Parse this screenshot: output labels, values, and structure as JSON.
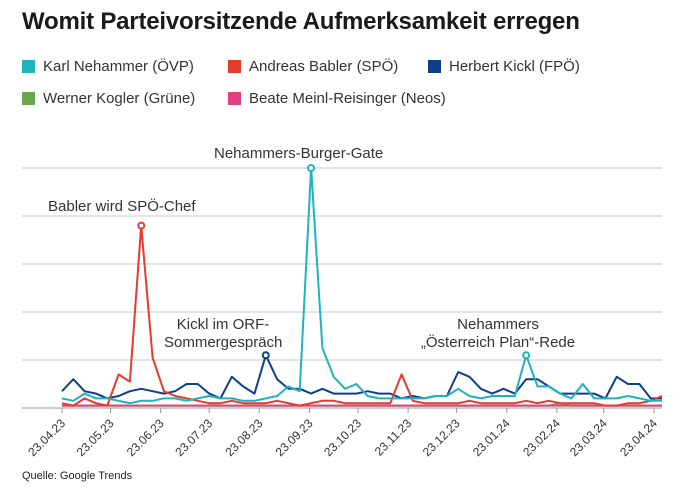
{
  "title": "Womit Parteivorsitzende Aufmerksamkeit erregen",
  "source": "Quelle: Google Trends",
  "chart_data": {
    "type": "line",
    "x": [
      "23.04.23",
      "30.04.23",
      "07.05.23",
      "14.05.23",
      "21.05.23",
      "28.05.23",
      "04.06.23",
      "11.06.23",
      "18.06.23",
      "25.06.23",
      "02.07.23",
      "09.07.23",
      "16.07.23",
      "23.07.23",
      "30.07.23",
      "06.08.23",
      "13.08.23",
      "20.08.23",
      "27.08.23",
      "03.09.23",
      "10.09.23",
      "17.09.23",
      "24.09.23",
      "01.10.23",
      "08.10.23",
      "15.10.23",
      "22.10.23",
      "29.10.23",
      "05.11.23",
      "12.11.23",
      "19.11.23",
      "26.11.23",
      "03.12.23",
      "10.12.23",
      "17.12.23",
      "24.12.23",
      "31.12.23",
      "07.01.24",
      "14.01.24",
      "21.01.24",
      "28.01.24",
      "04.02.24",
      "11.02.24",
      "18.02.24",
      "25.02.24",
      "03.03.24",
      "10.03.24",
      "17.03.24",
      "24.03.24",
      "31.03.24",
      "07.04.24",
      "14.04.24",
      "21.04.24",
      "28.04.24"
    ],
    "x_tick_labels": [
      "23.04.23",
      "23.05.23",
      "23.06.23",
      "23.07.23",
      "23.08.23",
      "23.09.23",
      "23.10.23",
      "23.11.23",
      "23.12.23",
      "23.01.24",
      "23.02.24",
      "23.03.24",
      "23.04.24"
    ],
    "ylim": [
      0,
      100
    ],
    "yticks": [
      0,
      20,
      40,
      60,
      80,
      100
    ],
    "grid": "horizontal",
    "legend_position": "top",
    "series": [
      {
        "name": "Karl Nehammer (ÖVP)",
        "color": "#1fb3bd",
        "values": [
          4,
          3,
          6,
          4,
          4,
          3,
          2,
          3,
          3,
          4,
          4,
          3,
          4,
          5,
          4,
          4,
          3,
          3,
          4,
          5,
          9,
          7,
          100,
          25,
          13,
          8,
          10,
          5,
          4,
          4,
          4,
          4,
          4,
          5,
          5,
          8,
          5,
          4,
          5,
          5,
          5,
          22,
          9,
          9,
          6,
          4,
          10,
          4,
          4,
          4,
          5,
          4,
          3,
          3
        ]
      },
      {
        "name": "Andreas Babler (SPÖ)",
        "color": "#e53a2c",
        "values": [
          2,
          1,
          4,
          2,
          1,
          14,
          11,
          76,
          21,
          7,
          5,
          4,
          3,
          2,
          2,
          3,
          2,
          2,
          2,
          3,
          2,
          1,
          2,
          3,
          3,
          2,
          2,
          2,
          2,
          2,
          14,
          3,
          2,
          2,
          2,
          2,
          3,
          2,
          2,
          2,
          2,
          3,
          2,
          3,
          2,
          2,
          2,
          2,
          1,
          1,
          2,
          2,
          3,
          5
        ]
      },
      {
        "name": "Herbert Kickl (FPÖ)",
        "color": "#0f3f8c",
        "values": [
          7,
          12,
          7,
          6,
          4,
          5,
          7,
          8,
          7,
          6,
          7,
          10,
          10,
          6,
          4,
          13,
          9,
          6,
          22,
          12,
          8,
          8,
          6,
          8,
          6,
          6,
          6,
          7,
          6,
          6,
          4,
          5,
          4,
          5,
          5,
          15,
          13,
          8,
          6,
          8,
          6,
          12,
          12,
          9,
          6,
          6,
          6,
          6,
          4,
          13,
          10,
          10,
          4,
          4
        ]
      },
      {
        "name": "Werner Kogler (Grüne)",
        "color": "#6aa84f",
        "values": [
          1,
          1,
          1,
          1,
          1,
          1,
          1,
          1,
          1,
          1,
          1,
          1,
          1,
          1,
          1,
          1,
          1,
          1,
          1,
          1,
          1,
          1,
          1,
          1,
          1,
          1,
          1,
          1,
          1,
          1,
          1,
          1,
          1,
          1,
          1,
          1,
          1,
          1,
          1,
          1,
          1,
          1,
          1,
          1,
          2,
          1,
          1,
          1,
          1,
          1,
          1,
          1,
          1,
          1
        ]
      },
      {
        "name": "Beate Meinl-Reisinger (Neos)",
        "color": "#e0407f",
        "values": [
          1,
          1,
          1,
          1,
          1,
          1,
          1,
          1,
          1,
          1,
          1,
          1,
          1,
          1,
          1,
          1,
          1,
          1,
          1,
          1,
          1,
          1,
          1,
          1,
          1,
          1,
          1,
          1,
          1,
          1,
          1,
          1,
          1,
          1,
          1,
          1,
          1,
          1,
          1,
          1,
          1,
          1,
          1,
          1,
          1,
          1,
          1,
          1,
          1,
          1,
          1,
          1,
          1,
          1
        ]
      }
    ],
    "annotations": [
      {
        "text": [
          "Babler wird SPÖ-Chef"
        ],
        "series": 1,
        "index": 7
      },
      {
        "text": [
          "Nehammers-Burger-Gate"
        ],
        "series": 0,
        "index": 22
      },
      {
        "text": [
          "Kickl im ORF-",
          "Sommergespräch"
        ],
        "series": 2,
        "index": 18
      },
      {
        "text": [
          "Nehammers",
          "„Österreich Plan“-Rede"
        ],
        "series": 0,
        "index": 41
      }
    ]
  }
}
